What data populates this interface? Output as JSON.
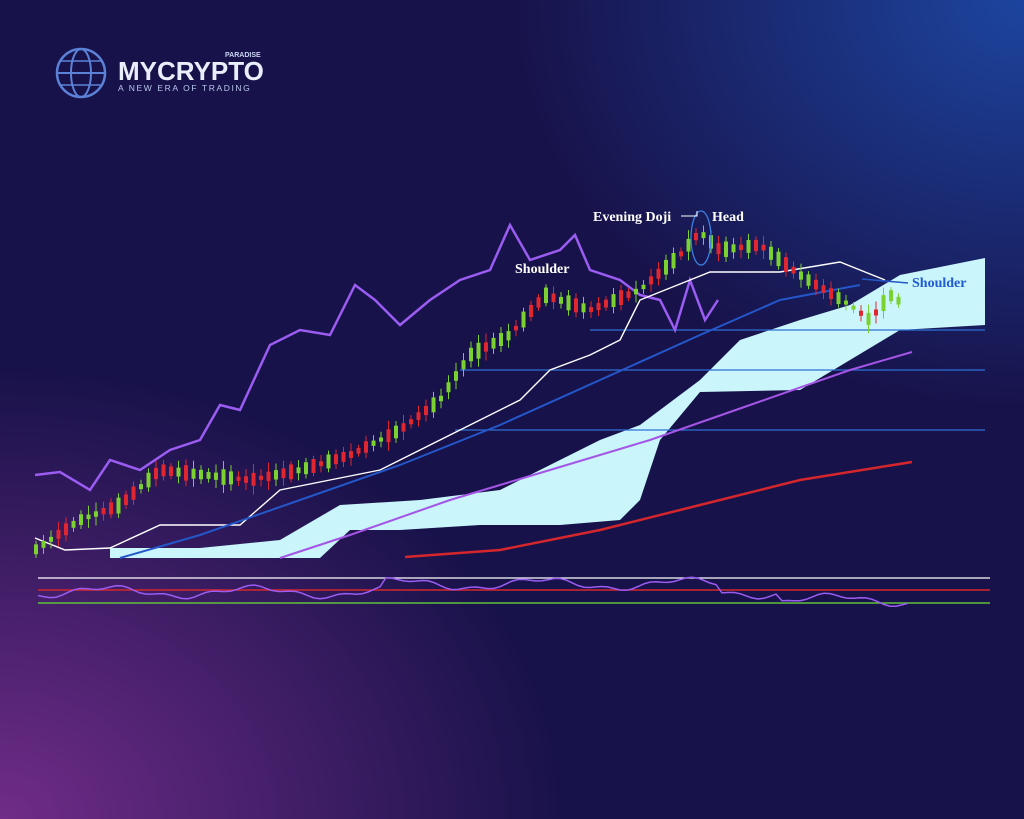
{
  "logo": {
    "brand": "MYCRYPTO",
    "superscript": "PARADISE",
    "tagline": "A NEW ERA OF TRADING"
  },
  "annotations": {
    "left_shoulder": "Shoulder",
    "doji": "Evening Doji",
    "head": "Head",
    "right_shoulder": "Shoulder"
  }
}
